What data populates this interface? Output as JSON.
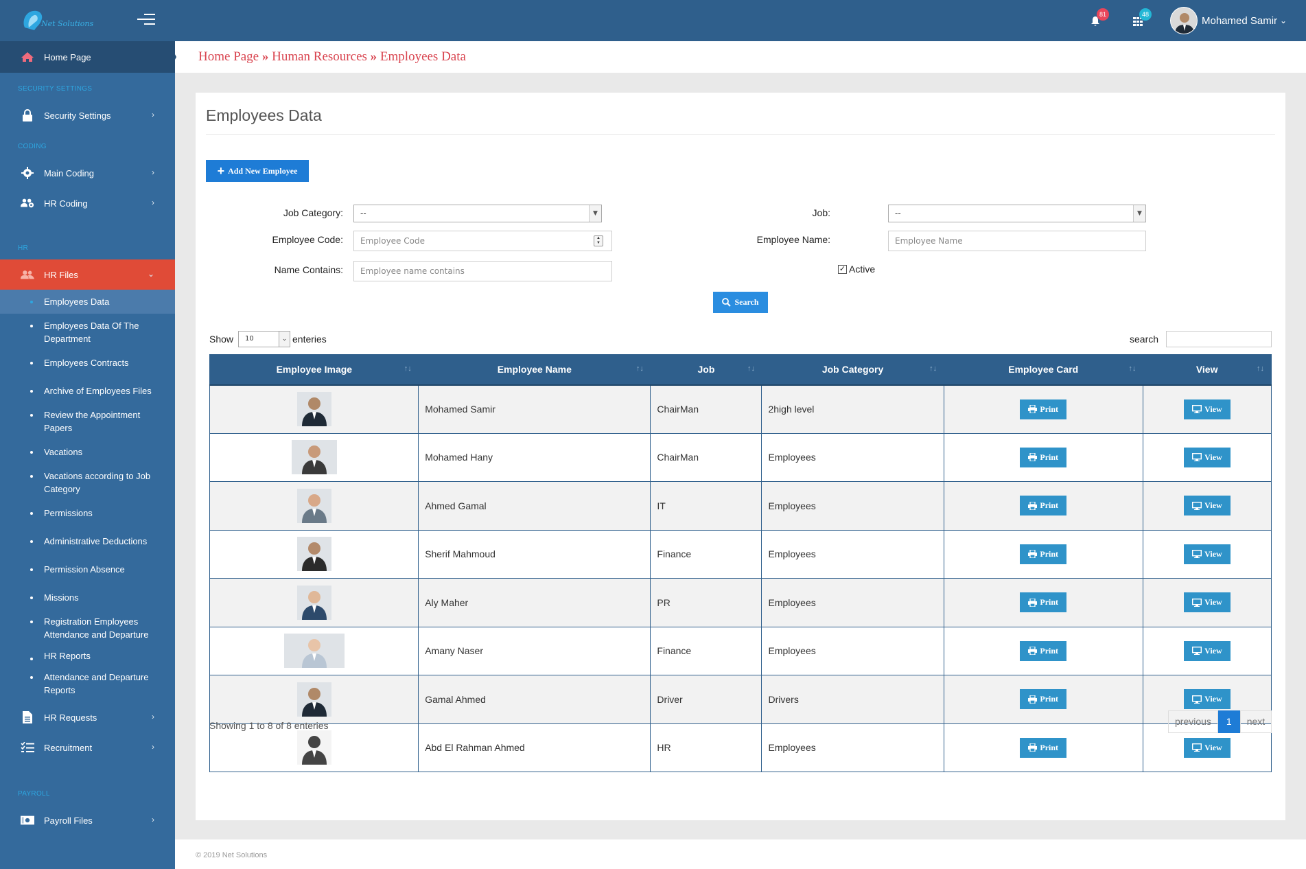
{
  "app": {
    "logo_text": "Net Solutions",
    "footer": "© 2019 Net Solutions"
  },
  "header": {
    "notifications_count": "81",
    "apps_count": "48",
    "user_name": "Mohamed Samir"
  },
  "sidebar": {
    "home": "Home Page",
    "sections": {
      "security": "SECURITY SETTINGS",
      "coding": "CODING",
      "hr": "HR",
      "payroll": "PAYROLL"
    },
    "security_settings": "Security Settings",
    "main_coding": "Main Coding",
    "hr_coding": "HR Coding",
    "hr_files": "HR Files",
    "hr_files_items": [
      "Employees Data",
      "Employees Data Of The Department",
      "Employees Contracts",
      "Archive of Employees Files",
      "Review the Appointment Papers",
      "Vacations",
      "Vacations according to Job Category",
      "Permissions",
      "Administrative Deductions",
      "Permission Absence",
      "Missions",
      "Registration Employees Attendance and Departure",
      "HR Reports",
      "Attendance and Departure Reports"
    ],
    "hr_requests": "HR Requests",
    "recruitment": "Recruitment",
    "payroll_files": "Payroll Files"
  },
  "breadcrumb": {
    "home": "Home Page",
    "sep": "»",
    "hr": "Human Resources",
    "current": "Employees Data"
  },
  "page": {
    "title": "Employees Data",
    "add_button": "Add New Employee",
    "filters": {
      "job_category_label": "Job Category:",
      "job_category_value": "--",
      "job_label": "Job:",
      "job_value": "--",
      "employee_code_label": "Employee Code:",
      "employee_code_placeholder": "Employee Code",
      "employee_name_label": "Employee Name:",
      "employee_name_placeholder": "Employee Name",
      "name_contains_label": "Name Contains:",
      "name_contains_placeholder": "Employee name contains",
      "active_label": "Active",
      "active_checked": true,
      "search_button": "Search"
    },
    "table_controls": {
      "show": "Show",
      "page_length": "10",
      "entries": "enteries",
      "search": "search"
    },
    "columns": [
      "Employee Image",
      "Employee Name",
      "Job",
      "Job Category",
      "Employee Card",
      "View"
    ],
    "print_label": "Print",
    "view_label": "View",
    "rows": [
      {
        "name": "Mohamed Samir",
        "job": "ChairMan",
        "category": "2high level"
      },
      {
        "name": "Mohamed Hany",
        "job": "ChairMan",
        "category": "Employees"
      },
      {
        "name": "Ahmed Gamal",
        "job": "IT",
        "category": "Employees"
      },
      {
        "name": "Sherif Mahmoud",
        "job": "Finance",
        "category": "Employees"
      },
      {
        "name": "Aly Maher",
        "job": "PR",
        "category": "Employees"
      },
      {
        "name": "Amany Naser",
        "job": "Finance",
        "category": "Employees"
      },
      {
        "name": "Gamal Ahmed",
        "job": "Driver",
        "category": "Drivers"
      },
      {
        "name": "Abd El Rahman Ahmed",
        "job": "HR",
        "category": "Employees"
      }
    ],
    "info": "Showing 1 to 8 of 8 enteries",
    "pagination": {
      "previous": "previous",
      "current": "1",
      "next": "next"
    }
  },
  "colors": {
    "topbar": "#2f5f8c",
    "sidebar": "#346a9c",
    "active": "#e04b37",
    "accent": "#1e7cd6",
    "breadcrumb": "#d9444f"
  }
}
